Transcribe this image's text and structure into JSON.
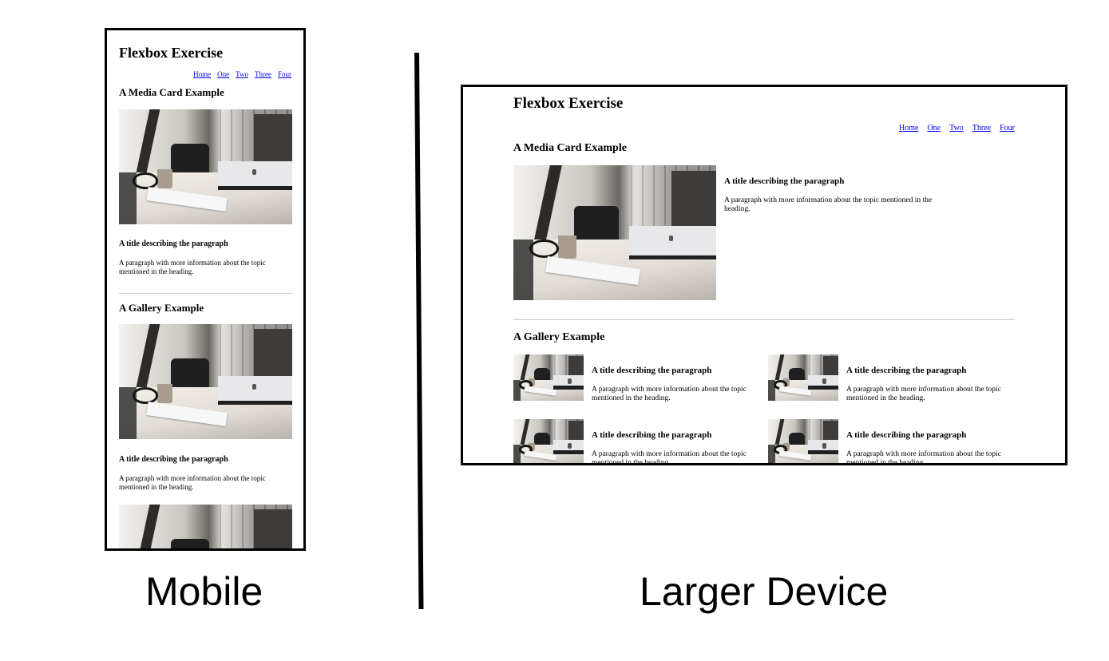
{
  "page_title": "Flexbox Exercise",
  "nav": [
    "Home",
    "One",
    "Two",
    "Three",
    "Four"
  ],
  "media_heading": "A Media Card Example",
  "gallery_heading": "A Gallery Example",
  "card_title": "A title describing the paragraph",
  "card_text": "A paragraph with more information about the topic mentioned in the heading.",
  "captions": {
    "mobile": "Mobile",
    "desktop": "Larger Device"
  },
  "colors": {
    "link": "#0000ee",
    "border": "#000000",
    "rule": "#c8c8c8"
  }
}
